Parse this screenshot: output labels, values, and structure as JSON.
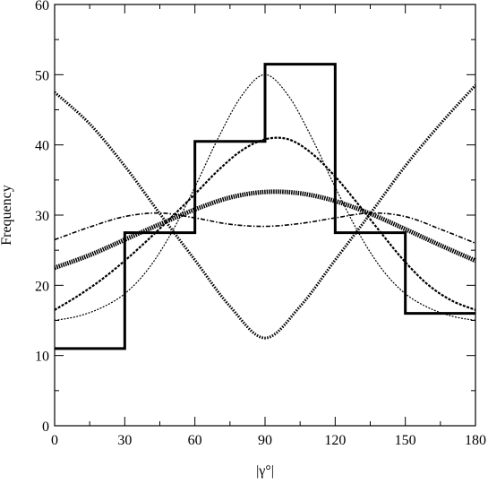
{
  "chart_data": {
    "type": "line",
    "xlabel": "|γ°|",
    "ylabel": "Frequency",
    "xlim": [
      0,
      180
    ],
    "ylim": [
      0,
      60
    ],
    "xticks": [
      0,
      30,
      60,
      90,
      120,
      150,
      180
    ],
    "yticks": [
      0,
      10,
      20,
      30,
      40,
      50,
      60
    ],
    "grid": false,
    "legend": "none",
    "histogram": {
      "edges": [
        0,
        30,
        60,
        90,
        120,
        150,
        180
      ],
      "values": [
        11,
        27.5,
        40.5,
        51.5,
        27.5,
        16
      ]
    },
    "series": [
      {
        "style": "thin-dashed",
        "x": [
          0,
          10,
          20,
          30,
          40,
          50,
          60,
          70,
          80,
          90,
          100,
          110,
          120,
          130,
          140,
          150,
          160,
          170,
          180
        ],
        "y": [
          15,
          15.6,
          16.8,
          18.8,
          22.3,
          27.5,
          34,
          41,
          47,
          50,
          47,
          41,
          34,
          27.5,
          22.3,
          18.8,
          16.8,
          15.6,
          15
        ]
      },
      {
        "style": "thick-dashed",
        "x": [
          0,
          10,
          20,
          30,
          40,
          50,
          60,
          70,
          80,
          90,
          100,
          110,
          120,
          130,
          140,
          150,
          160,
          170,
          180
        ],
        "y": [
          16.5,
          18.5,
          20.8,
          23.5,
          26.5,
          29.7,
          33,
          36.4,
          39.2,
          40.8,
          40.8,
          38.8,
          35.5,
          31.5,
          27.3,
          23.3,
          20,
          17.8,
          16.5
        ]
      },
      {
        "style": "dash-dot",
        "x": [
          0,
          15,
          30,
          45,
          60,
          75,
          90,
          105,
          120,
          135,
          150,
          165,
          180
        ],
        "y": [
          26.5,
          28.3,
          29.8,
          30.3,
          29.6,
          28.7,
          28.4,
          28.8,
          29.6,
          30.3,
          29.8,
          28,
          26
        ]
      },
      {
        "style": "thick-hatched",
        "x": [
          0,
          15,
          30,
          45,
          60,
          75,
          90,
          105,
          120,
          135,
          150,
          165,
          180
        ],
        "y": [
          22.5,
          24.3,
          26.5,
          28.7,
          30.8,
          32.5,
          33.3,
          33.1,
          32,
          30.2,
          28,
          25.7,
          23.5
        ]
      },
      {
        "style": "dotted",
        "x": [
          0,
          15,
          30,
          45,
          60,
          75,
          90,
          105,
          120,
          135,
          150,
          165,
          180
        ],
        "y": [
          47.5,
          43,
          37,
          30.2,
          23.6,
          17,
          12.5,
          17,
          23.6,
          30.2,
          37,
          43,
          48.5
        ]
      }
    ]
  }
}
